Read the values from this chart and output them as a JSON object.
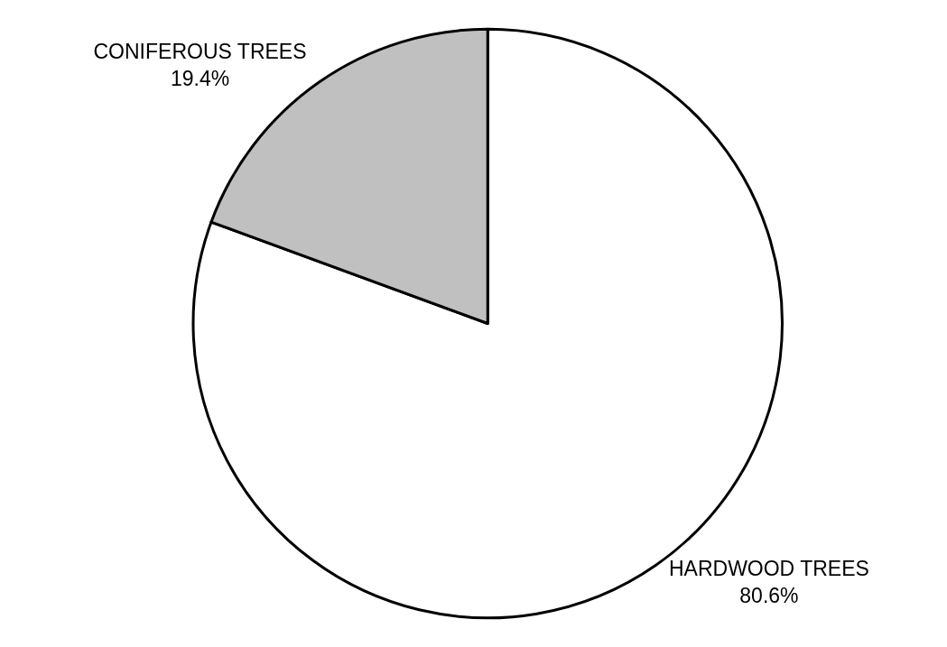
{
  "chart_data": {
    "type": "pie",
    "categories": [
      "HARDWOOD TREES",
      "CONIFEROUS TREES"
    ],
    "values": [
      80.6,
      19.4
    ],
    "value_labels": [
      "80.6%",
      "19.4%"
    ],
    "colors": [
      "#ffffff",
      "#c0c0c0"
    ]
  }
}
